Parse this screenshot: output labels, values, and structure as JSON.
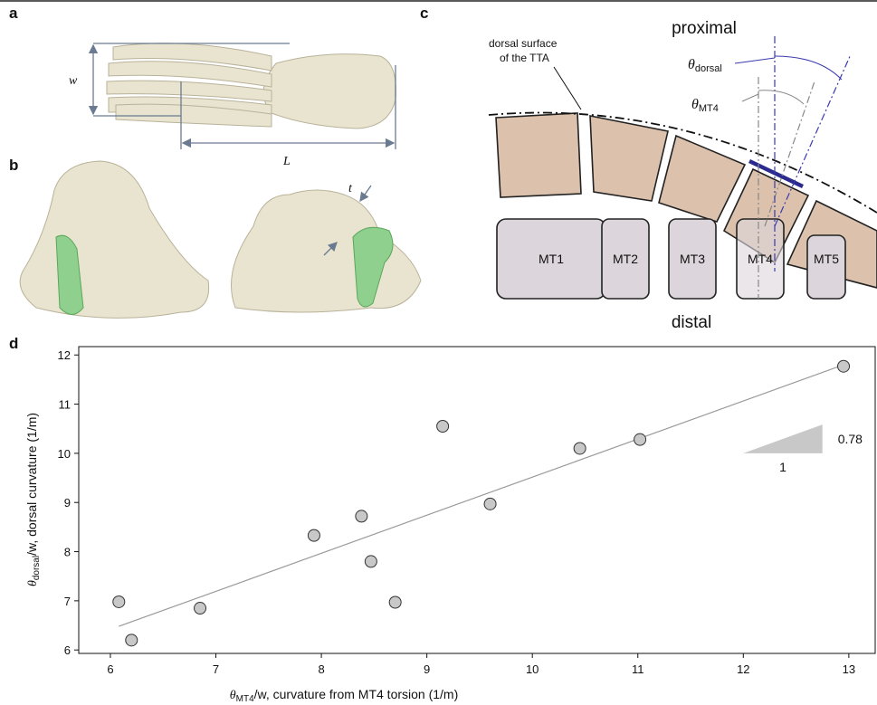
{
  "panels": {
    "a": "a",
    "b": "b",
    "c": "c",
    "d": "d"
  },
  "panel_a": {
    "width_label": "w",
    "length_label": "L"
  },
  "panel_b": {
    "thickness_label": "t"
  },
  "panel_c": {
    "top_label": "proximal",
    "bottom_label": "distal",
    "surface_label": [
      "dorsal surface",
      "of the TTA"
    ],
    "angle_dorsal": {
      "symbol": "θ",
      "subscript": "dorsal"
    },
    "angle_mt4": {
      "symbol": "θ",
      "subscript": "MT4"
    },
    "boxes": [
      "MT1",
      "MT2",
      "MT3",
      "MT4",
      "MT5"
    ]
  },
  "chart_data": {
    "type": "scatter",
    "x_label": {
      "symbol": "θ",
      "subscript": "MT4",
      "rest": "/w, curvature from MT4 torsion (1/m)"
    },
    "y_label": {
      "symbol": "θ",
      "subscript": "dorsal",
      "rest": "/w, dorsal curvature (1/m)"
    },
    "x": [
      6.08,
      6.2,
      6.85,
      7.93,
      8.38,
      8.47,
      8.7,
      9.15,
      9.6,
      10.45,
      11.02,
      12.95
    ],
    "values": [
      6.98,
      6.2,
      6.85,
      8.33,
      8.72,
      7.8,
      6.97,
      10.55,
      8.97,
      10.1,
      10.28,
      11.77
    ],
    "color": "#c8c8c8",
    "fit_line": {
      "x": [
        6.08,
        12.95
      ],
      "y": [
        6.48,
        11.8
      ],
      "color": "#999999"
    },
    "slope_triangle": {
      "x": [
        12,
        12.75
      ],
      "y": [
        10,
        10.585
      ],
      "run_label": "1",
      "rise_label": "0.78",
      "color": "#c8c8c8"
    },
    "xlim": [
      5.7,
      13.25
    ],
    "ylim": [
      5.93,
      12.17
    ],
    "xticks": [
      6,
      7,
      8,
      9,
      10,
      11,
      12,
      13
    ],
    "yticks": [
      6,
      7,
      8,
      9,
      10,
      11,
      12
    ]
  }
}
